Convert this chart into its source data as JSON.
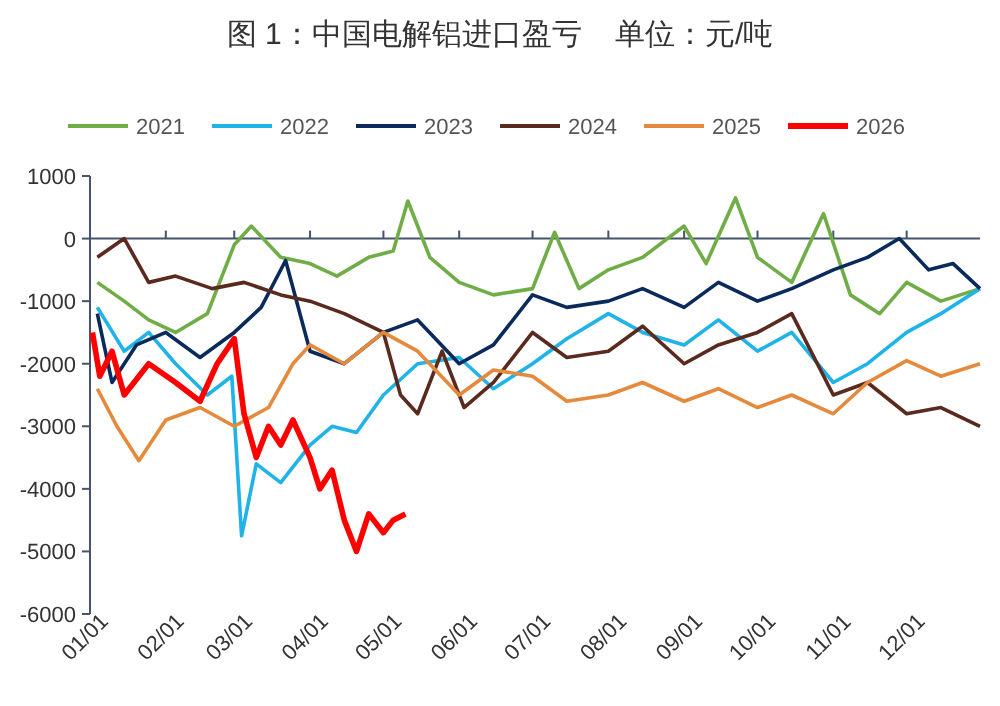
{
  "chart_data": {
    "type": "line",
    "title": "图 1：中国电解铝进口盈亏    单位：元/吨",
    "legend": "top",
    "line_style": "solid",
    "xlim": [
      "--01-01",
      "--12-31"
    ],
    "xticks": [
      {
        "value": "--01-01",
        "label": "01/01"
      },
      {
        "value": "--02-01",
        "label": "02/01"
      },
      {
        "value": "--03-01",
        "label": "03/01"
      },
      {
        "value": "--04-01",
        "label": "04/01"
      },
      {
        "value": "--05-01",
        "label": "05/01"
      },
      {
        "value": "--06-01",
        "label": "06/01"
      },
      {
        "value": "--07-01",
        "label": "07/01"
      },
      {
        "value": "--08-01",
        "label": "08/01"
      },
      {
        "value": "--09-01",
        "label": "09/01"
      },
      {
        "value": "--10-01",
        "label": "10/01"
      },
      {
        "value": "--11-01",
        "label": "11/01"
      },
      {
        "value": "--12-01",
        "label": "12/01"
      }
    ],
    "ylim": [
      -6000,
      1000
    ],
    "yticks": [
      -6000,
      -5000,
      -4000,
      -3000,
      -2000,
      -1000,
      0,
      1000
    ],
    "series": [
      {
        "name": "2021",
        "color": "#70ad47",
        "x": [
          "--01-04",
          "--01-15",
          "--01-25",
          "--02-05",
          "--02-18",
          "--03-01",
          "--03-08",
          "--03-20",
          "--04-01",
          "--04-12",
          "--04-25",
          "--05-05",
          "--05-11",
          "--05-20",
          "--06-01",
          "--06-15",
          "--07-01",
          "--07-10",
          "--07-20",
          "--08-01",
          "--08-15",
          "--09-01",
          "--09-10",
          "--09-22",
          "--10-01",
          "--10-15",
          "--10-28",
          "--11-08",
          "--11-20",
          "--12-01",
          "--12-15",
          "--12-31"
        ],
        "values": [
          -700,
          -1000,
          -1300,
          -1500,
          -1200,
          -100,
          200,
          -300,
          -400,
          -600,
          -300,
          -200,
          600,
          -300,
          -700,
          -900,
          -800,
          100,
          -800,
          -500,
          -300,
          200,
          -400,
          650,
          -300,
          -700,
          400,
          -900,
          -1200,
          -700,
          -1000,
          -800
        ]
      },
      {
        "name": "2022",
        "color": "#1fb3e8",
        "x": [
          "--01-04",
          "--01-15",
          "--01-25",
          "--02-05",
          "--02-18",
          "--02-28",
          "--03-04",
          "--03-10",
          "--03-20",
          "--04-01",
          "--04-10",
          "--04-20",
          "--05-01",
          "--05-15",
          "--06-01",
          "--06-15",
          "--07-01",
          "--07-15",
          "--08-01",
          "--08-15",
          "--09-01",
          "--09-15",
          "--10-01",
          "--10-15",
          "--11-01",
          "--11-15",
          "--12-01",
          "--12-15",
          "--12-31"
        ],
        "values": [
          -1100,
          -1800,
          -1500,
          -2000,
          -2500,
          -2200,
          -4750,
          -3600,
          -3900,
          -3300,
          -3000,
          -3100,
          -2500,
          -2000,
          -1900,
          -2400,
          -2000,
          -1600,
          -1200,
          -1500,
          -1700,
          -1300,
          -1800,
          -1500,
          -2300,
          -2000,
          -1500,
          -1200,
          -800
        ]
      },
      {
        "name": "2023",
        "color": "#0b2a5c",
        "x": [
          "--01-04",
          "--01-10",
          "--01-20",
          "--02-01",
          "--02-15",
          "--03-01",
          "--03-12",
          "--03-22",
          "--04-01",
          "--04-15",
          "--05-01",
          "--05-15",
          "--06-01",
          "--06-15",
          "--07-01",
          "--07-15",
          "--08-01",
          "--08-15",
          "--09-01",
          "--09-15",
          "--10-01",
          "--10-15",
          "--11-01",
          "--11-15",
          "--11-28",
          "--12-10",
          "--12-20",
          "--12-31"
        ],
        "values": [
          -1200,
          -2300,
          -1700,
          -1500,
          -1900,
          -1500,
          -1100,
          -350,
          -1800,
          -2000,
          -1500,
          -1300,
          -2000,
          -1700,
          -900,
          -1100,
          -1000,
          -800,
          -1100,
          -700,
          -1000,
          -800,
          -500,
          -300,
          0,
          -500,
          -400,
          -800
        ]
      },
      {
        "name": "2024",
        "color": "#5a2a1e",
        "x": [
          "--01-04",
          "--01-15",
          "--01-25",
          "--02-05",
          "--02-20",
          "--03-05",
          "--03-20",
          "--04-01",
          "--04-15",
          "--05-01",
          "--05-08",
          "--05-15",
          "--05-25",
          "--06-03",
          "--06-15",
          "--07-01",
          "--07-15",
          "--08-01",
          "--08-15",
          "--09-01",
          "--09-15",
          "--10-01",
          "--10-15",
          "--11-01",
          "--11-15",
          "--12-01",
          "--12-15",
          "--12-31"
        ],
        "values": [
          -300,
          0,
          -700,
          -600,
          -800,
          -700,
          -900,
          -1000,
          -1200,
          -1500,
          -2500,
          -2800,
          -1800,
          -2700,
          -2300,
          -1500,
          -1900,
          -1800,
          -1400,
          -2000,
          -1700,
          -1500,
          -1200,
          -2500,
          -2300,
          -2800,
          -2700,
          -3000
        ]
      },
      {
        "name": "2025",
        "color": "#e58a3c",
        "x": [
          "--01-04",
          "--01-12",
          "--01-21",
          "--02-01",
          "--02-15",
          "--03-01",
          "--03-15",
          "--03-25",
          "--04-01",
          "--04-15",
          "--05-01",
          "--05-15",
          "--06-01",
          "--06-15",
          "--07-01",
          "--07-15",
          "--08-01",
          "--08-15",
          "--09-01",
          "--09-15",
          "--10-01",
          "--10-15",
          "--11-01",
          "--11-15",
          "--12-01",
          "--12-15",
          "--12-31"
        ],
        "values": [
          -2400,
          -3000,
          -3550,
          -2900,
          -2700,
          -3000,
          -2700,
          -2000,
          -1700,
          -2000,
          -1500,
          -1800,
          -2500,
          -2100,
          -2200,
          -2600,
          -2500,
          -2300,
          -2600,
          -2400,
          -2700,
          -2500,
          -2800,
          -2300,
          -1950,
          -2200,
          -2000
        ]
      },
      {
        "name": "2026",
        "color": "#ff0000",
        "x": [
          "--01-02",
          "--01-05",
          "--01-10",
          "--01-15",
          "--01-25",
          "--02-05",
          "--02-15",
          "--02-22",
          "--03-01",
          "--03-05",
          "--03-10",
          "--03-15",
          "--03-20",
          "--03-25",
          "--04-01",
          "--04-05",
          "--04-10",
          "--04-15",
          "--04-20",
          "--04-25",
          "--05-01",
          "--05-05",
          "--05-10"
        ],
        "values": [
          -1500,
          -2200,
          -1800,
          -2500,
          -2000,
          -2300,
          -2600,
          -2000,
          -1600,
          -2800,
          -3500,
          -3000,
          -3300,
          -2900,
          -3500,
          -4000,
          -3700,
          -4500,
          -5000,
          -4400,
          -4700,
          -4500,
          -4400
        ]
      }
    ]
  }
}
